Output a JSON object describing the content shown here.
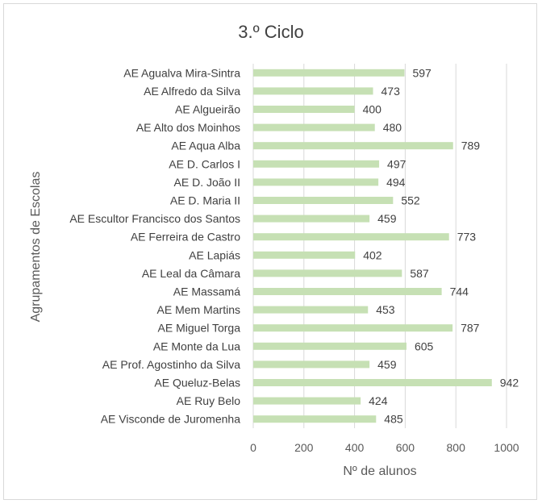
{
  "chart_data": {
    "type": "bar",
    "orientation": "horizontal",
    "title": "3.º Ciclo",
    "xlabel": "Nº de alunos",
    "ylabel": "Agrupamentos de Escolas",
    "xlim": [
      0,
      1000
    ],
    "xticks": [
      0,
      200,
      400,
      600,
      800,
      1000
    ],
    "grid": true,
    "bar_color": "#c6e0b4",
    "categories": [
      "AE Agualva Mira-Sintra",
      "AE Alfredo da Silva",
      "AE Algueirão",
      "AE Alto dos Moinhos",
      "AE Aqua Alba",
      "AE D. Carlos I",
      "AE D. João II",
      "AE D. Maria II",
      "AE Escultor Francisco dos Santos",
      "AE Ferreira de Castro",
      "AE Lapiás",
      "AE Leal da Câmara",
      "AE Massamá",
      "AE Mem Martins",
      "AE Miguel Torga",
      "AE Monte da Lua",
      "AE Prof. Agostinho da Silva",
      "AE Queluz-Belas",
      "AE Ruy Belo",
      "AE Visconde de Juromenha"
    ],
    "values": [
      597,
      473,
      400,
      480,
      789,
      497,
      494,
      552,
      459,
      773,
      402,
      587,
      744,
      453,
      787,
      605,
      459,
      942,
      424,
      485
    ]
  }
}
